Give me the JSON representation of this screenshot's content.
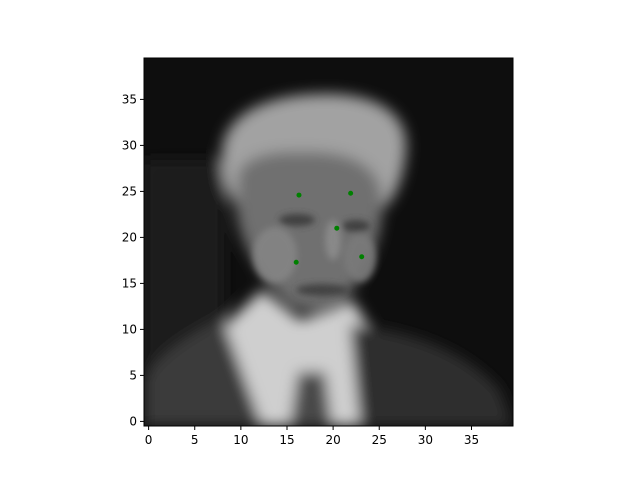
{
  "chart_data": {
    "type": "scatter",
    "title": "",
    "xlabel": "",
    "ylabel": "",
    "background": "grayscale image of a face",
    "xlim": [
      -0.5,
      39.5
    ],
    "ylim": [
      39.5,
      -0.5
    ],
    "y_inverted": true,
    "x_ticks": [
      0,
      5,
      10,
      15,
      20,
      25,
      30,
      35
    ],
    "y_ticks": [
      0,
      5,
      10,
      15,
      20,
      25,
      30,
      35
    ],
    "grid": false,
    "marker_color": "#008000",
    "series": [
      {
        "points": [
          {
            "x": 16.0,
            "y": 17.3
          },
          {
            "x": 23.1,
            "y": 17.9
          },
          {
            "x": 20.4,
            "y": 21.0
          },
          {
            "x": 16.3,
            "y": 24.6
          },
          {
            "x": 21.9,
            "y": 24.8
          }
        ]
      }
    ]
  }
}
